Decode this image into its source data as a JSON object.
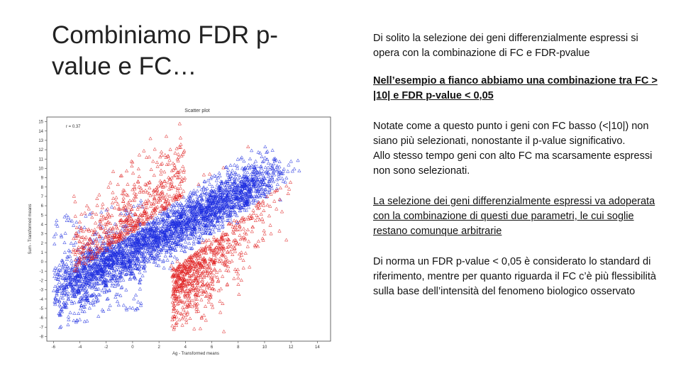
{
  "slide": {
    "title": "Combiniamo FDR p-value e FC…",
    "paragraphs": [
      "Di solito la selezione dei geni differenzialmente espressi si opera con la combinazione di FC e FDR-pvalue",
      "Nell’esempio a fianco abbiamo una combinazione tra FC > |10| e FDR p-value < 0,05",
      "Notate come a questo punto i geni con FC basso (<|10|) non siano più selezionati, nonostante il p-value significativo.",
      "Allo stesso tempo geni con alto FC ma scarsamente espressi non sono selezionati.",
      "La selezione dei geni differenzialmente espressi va adoperata con la combinazione di questi due parametri, le cui soglie restano comunque arbitrarie",
      "Di norma un FDR p-value < 0,05 è considerato lo standard di riferimento, mentre per quanto riguarda il FC c’è più flessibilità sulla base dell’intensità del fenomeno biologico osservato"
    ]
  },
  "chart_data": {
    "type": "scatter",
    "title": "Scatter plot",
    "annotation": "r = 0.37",
    "xlabel": "Ag - Transformed means",
    "ylabel": "Sum - Transformed means",
    "xlim": [
      -6.5,
      15
    ],
    "ylim": [
      -8.5,
      15.5
    ],
    "x_ticks": [
      -6,
      -4,
      -2,
      0,
      2,
      4,
      6,
      8,
      10,
      12,
      14
    ],
    "y_ticks": [
      15,
      14,
      13,
      12,
      11,
      10,
      9,
      8,
      7,
      6,
      5,
      4,
      3,
      2,
      1,
      0,
      -1,
      -2,
      -3,
      -4,
      -5,
      -6,
      -7,
      -8
    ],
    "series": [
      {
        "color": "#1f2fe0"
      },
      {
        "color": "#e01f1f"
      }
    ],
    "colors": {
      "not_selected": "#1f2fe0",
      "selected": "#e01f1f"
    },
    "marker": "open-triangle"
  }
}
